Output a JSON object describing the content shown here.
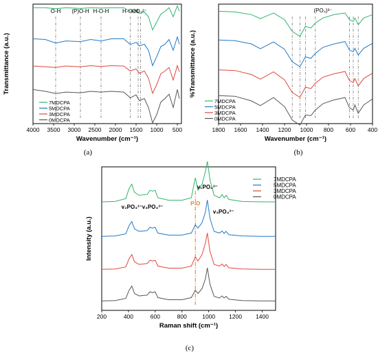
{
  "chart_data": [
    {
      "id": "a",
      "type": "line",
      "caption": "(a)",
      "xlabel": "Wavenumber (cm⁻¹)",
      "ylabel": "Transmittance (a.u.)",
      "xlim": [
        4000,
        400
      ],
      "ticks": [
        "4000",
        "3500",
        "3000",
        "2500",
        "2000",
        "1500",
        "1000",
        "500"
      ],
      "tick_values": [
        4000,
        3500,
        3000,
        2500,
        2000,
        1500,
        1000,
        500
      ],
      "annotations": [
        {
          "label": "O-H",
          "x": 3450
        },
        {
          "label": "(P)O-H",
          "x": 2850
        },
        {
          "label": "H-O-H",
          "x": 2350
        },
        {
          "label": "H-O-H",
          "x": 1640
        },
        {
          "label": "CO₃²⁻",
          "x": 1420
        }
      ],
      "dashed_lines_x": [
        3450,
        2850,
        2350,
        1640,
        1450,
        1390
      ],
      "series": [
        {
          "name": "7MDCPA",
          "color": "#2db36b",
          "x": [
            4000,
            3700,
            3450,
            3200,
            2850,
            2600,
            2350,
            2100,
            1800,
            1640,
            1500,
            1420,
            1300,
            1200,
            1100,
            1000,
            900,
            800,
            700,
            600,
            500,
            450
          ],
          "y": [
            0.1,
            0.1,
            0.13,
            0.1,
            0.12,
            0.1,
            0.11,
            0.1,
            0.1,
            0.2,
            0.18,
            0.26,
            0.22,
            0.35,
            0.72,
            0.5,
            0.28,
            0.2,
            0.1,
            0.35,
            0.05,
            0.2
          ]
        },
        {
          "name": "5MDCPA",
          "color": "#1f78c8",
          "x": [
            4000,
            3700,
            3450,
            3200,
            2850,
            2600,
            2350,
            2100,
            1800,
            1640,
            1500,
            1420,
            1300,
            1200,
            1100,
            1000,
            900,
            800,
            700,
            600,
            500,
            450
          ],
          "y": [
            0.1,
            0.12,
            0.22,
            0.16,
            0.18,
            0.12,
            0.16,
            0.1,
            0.1,
            0.26,
            0.2,
            0.3,
            0.25,
            0.42,
            0.85,
            0.6,
            0.32,
            0.25,
            0.12,
            0.42,
            0.05,
            0.25
          ]
        },
        {
          "name": "3MDCPA",
          "color": "#e0463c",
          "x": [
            4000,
            3700,
            3450,
            3200,
            2850,
            2600,
            2350,
            2100,
            1800,
            1640,
            1500,
            1420,
            1300,
            1200,
            1100,
            1000,
            900,
            800,
            700,
            600,
            500,
            450
          ],
          "y": [
            0.06,
            0.08,
            0.1,
            0.06,
            0.08,
            0.05,
            0.07,
            0.05,
            0.06,
            0.2,
            0.14,
            0.26,
            0.2,
            0.4,
            0.82,
            0.58,
            0.28,
            0.2,
            0.1,
            0.45,
            0.05,
            0.22
          ]
        },
        {
          "name": "0MDCPA",
          "color": "#555555",
          "x": [
            4000,
            3700,
            3450,
            3200,
            2850,
            2600,
            2350,
            2100,
            1800,
            1640,
            1500,
            1420,
            1300,
            1200,
            1100,
            1000,
            900,
            800,
            700,
            600,
            500,
            450
          ],
          "y": [
            0.05,
            0.1,
            0.16,
            0.12,
            0.14,
            0.1,
            0.12,
            0.1,
            0.12,
            0.28,
            0.2,
            0.36,
            0.3,
            0.55,
            0.98,
            0.75,
            0.4,
            0.3,
            0.18,
            0.55,
            0.05,
            0.3
          ]
        }
      ],
      "offsets": [
        3.0,
        2.0,
        1.0,
        0.0
      ],
      "legend": "bottom-left"
    },
    {
      "id": "b",
      "type": "line",
      "caption": "(b)",
      "xlabel": "Wavenumber (cm⁻¹)",
      "ylabel": "%Transmittance (a.u.)",
      "xlim": [
        1800,
        400
      ],
      "ticks": [
        "1800",
        "1600",
        "1400",
        "1200",
        "1000",
        "800",
        "600",
        "400"
      ],
      "tick_values": [
        1800,
        1600,
        1400,
        1200,
        1000,
        800,
        600,
        400
      ],
      "annotations": [
        {
          "label": "(PO₄)³⁻",
          "x": 850
        }
      ],
      "dashed_lines_x": [
        1130,
        1060,
        1010,
        920,
        610,
        575,
        530
      ],
      "series": [
        {
          "name": "7MDCPA",
          "color": "#2db36b",
          "x": [
            1800,
            1650,
            1500,
            1420,
            1300,
            1200,
            1130,
            1060,
            1010,
            960,
            920,
            850,
            750,
            650,
            610,
            575,
            560,
            530,
            480,
            400
          ],
          "y": [
            0.1,
            0.12,
            0.2,
            0.32,
            0.15,
            0.35,
            0.7,
            0.85,
            0.55,
            0.6,
            0.45,
            0.3,
            0.2,
            0.15,
            0.35,
            0.4,
            0.3,
            0.5,
            0.3,
            0.2
          ]
        },
        {
          "name": "5MDCPA",
          "color": "#1f78c8",
          "x": [
            1800,
            1650,
            1500,
            1420,
            1300,
            1200,
            1130,
            1060,
            1010,
            960,
            920,
            850,
            750,
            650,
            610,
            575,
            560,
            530,
            480,
            400
          ],
          "y": [
            0.1,
            0.12,
            0.22,
            0.36,
            0.16,
            0.38,
            0.75,
            0.9,
            0.6,
            0.65,
            0.5,
            0.32,
            0.22,
            0.15,
            0.4,
            0.45,
            0.35,
            0.55,
            0.35,
            0.2
          ]
        },
        {
          "name": "3MDCPA",
          "color": "#e0463c",
          "x": [
            1800,
            1650,
            1500,
            1420,
            1300,
            1200,
            1130,
            1060,
            1010,
            960,
            920,
            850,
            750,
            650,
            610,
            575,
            560,
            530,
            480,
            400
          ],
          "y": [
            0.1,
            0.12,
            0.24,
            0.38,
            0.16,
            0.4,
            0.78,
            0.92,
            0.62,
            0.66,
            0.5,
            0.32,
            0.22,
            0.15,
            0.42,
            0.48,
            0.36,
            0.58,
            0.36,
            0.2
          ]
        },
        {
          "name": "0MDCPA",
          "color": "#555555",
          "x": [
            1800,
            1650,
            1500,
            1420,
            1300,
            1200,
            1130,
            1060,
            1010,
            960,
            920,
            850,
            750,
            650,
            610,
            575,
            560,
            530,
            480,
            400
          ],
          "y": [
            0.12,
            0.14,
            0.28,
            0.42,
            0.18,
            0.45,
            0.85,
            1.0,
            0.7,
            0.72,
            0.55,
            0.36,
            0.25,
            0.18,
            0.48,
            0.55,
            0.4,
            0.65,
            0.4,
            0.22
          ]
        }
      ],
      "offsets": [
        3.0,
        2.0,
        1.0,
        0.0
      ],
      "legend": "bottom-left"
    },
    {
      "id": "c",
      "type": "line",
      "caption": "(c)",
      "xlabel": "Raman shift (cm⁻¹)",
      "ylabel": "Intensity (a.u.)",
      "xlim": [
        200,
        1500
      ],
      "ticks": [
        "200",
        "400",
        "600",
        "800",
        "1000",
        "1200",
        "1400"
      ],
      "tick_values": [
        200,
        400,
        600,
        800,
        1000,
        1200,
        1400
      ],
      "dashed_line_x": 900,
      "annotations": [
        {
          "label": "v₂PO₄³⁻",
          "x": 425
        },
        {
          "label": "v₄PO₄³⁻",
          "x": 580
        },
        {
          "label": "P-O",
          "x": 900
        },
        {
          "label": "v₁PO₄³⁻",
          "x": 990
        },
        {
          "label": "v₃PO₄³⁻",
          "x": 1110
        }
      ],
      "series": [
        {
          "name": "7MDCPA",
          "color": "#2db36b",
          "x": [
            200,
            300,
            380,
            405,
            425,
            445,
            480,
            540,
            560,
            580,
            600,
            620,
            700,
            800,
            870,
            900,
            920,
            950,
            975,
            990,
            1010,
            1040,
            1080,
            1100,
            1115,
            1130,
            1150,
            1250,
            1400,
            1500
          ],
          "y": [
            0.02,
            0.03,
            0.1,
            0.35,
            0.45,
            0.25,
            0.18,
            0.2,
            0.3,
            0.28,
            0.3,
            0.12,
            0.06,
            0.06,
            0.12,
            0.6,
            0.3,
            0.45,
            0.75,
            1.0,
            0.55,
            0.18,
            0.12,
            0.2,
            0.12,
            0.18,
            0.08,
            0.03,
            0.02,
            0.02
          ]
        },
        {
          "name": "5MDCPA",
          "color": "#1f78c8",
          "x": [
            200,
            300,
            380,
            405,
            425,
            445,
            480,
            540,
            560,
            580,
            600,
            620,
            700,
            800,
            870,
            900,
            920,
            950,
            975,
            990,
            1010,
            1040,
            1080,
            1100,
            1115,
            1130,
            1150,
            1250,
            1400,
            1500
          ],
          "y": [
            0.02,
            0.03,
            0.08,
            0.28,
            0.38,
            0.2,
            0.14,
            0.16,
            0.24,
            0.22,
            0.24,
            0.1,
            0.05,
            0.05,
            0.1,
            0.3,
            0.22,
            0.35,
            0.6,
            0.9,
            0.45,
            0.14,
            0.1,
            0.15,
            0.09,
            0.14,
            0.06,
            0.03,
            0.02,
            0.02
          ]
        },
        {
          "name": "3MDCPA",
          "color": "#e0463c",
          "x": [
            200,
            300,
            380,
            405,
            425,
            445,
            480,
            540,
            560,
            580,
            600,
            620,
            700,
            800,
            870,
            900,
            920,
            950,
            975,
            990,
            1010,
            1040,
            1080,
            1100,
            1115,
            1130,
            1150,
            1250,
            1400,
            1500
          ],
          "y": [
            0.02,
            0.03,
            0.08,
            0.28,
            0.38,
            0.2,
            0.14,
            0.16,
            0.24,
            0.22,
            0.24,
            0.1,
            0.05,
            0.05,
            0.1,
            0.32,
            0.22,
            0.38,
            0.65,
            0.9,
            0.45,
            0.14,
            0.1,
            0.15,
            0.09,
            0.14,
            0.06,
            0.03,
            0.02,
            0.02
          ]
        },
        {
          "name": "0MDCPA",
          "color": "#555555",
          "x": [
            200,
            300,
            380,
            405,
            425,
            445,
            480,
            540,
            560,
            580,
            600,
            620,
            700,
            800,
            870,
            900,
            920,
            950,
            975,
            990,
            1010,
            1040,
            1080,
            1100,
            1115,
            1130,
            1150,
            1250,
            1400,
            1500
          ],
          "y": [
            0.02,
            0.03,
            0.08,
            0.28,
            0.38,
            0.2,
            0.14,
            0.16,
            0.24,
            0.22,
            0.24,
            0.1,
            0.05,
            0.05,
            0.1,
            0.28,
            0.2,
            0.32,
            0.55,
            0.82,
            0.42,
            0.13,
            0.09,
            0.14,
            0.09,
            0.13,
            0.06,
            0.03,
            0.02,
            0.02
          ]
        }
      ],
      "offsets": [
        3.0,
        2.0,
        1.0,
        0.0
      ],
      "legend": "top-right"
    }
  ]
}
